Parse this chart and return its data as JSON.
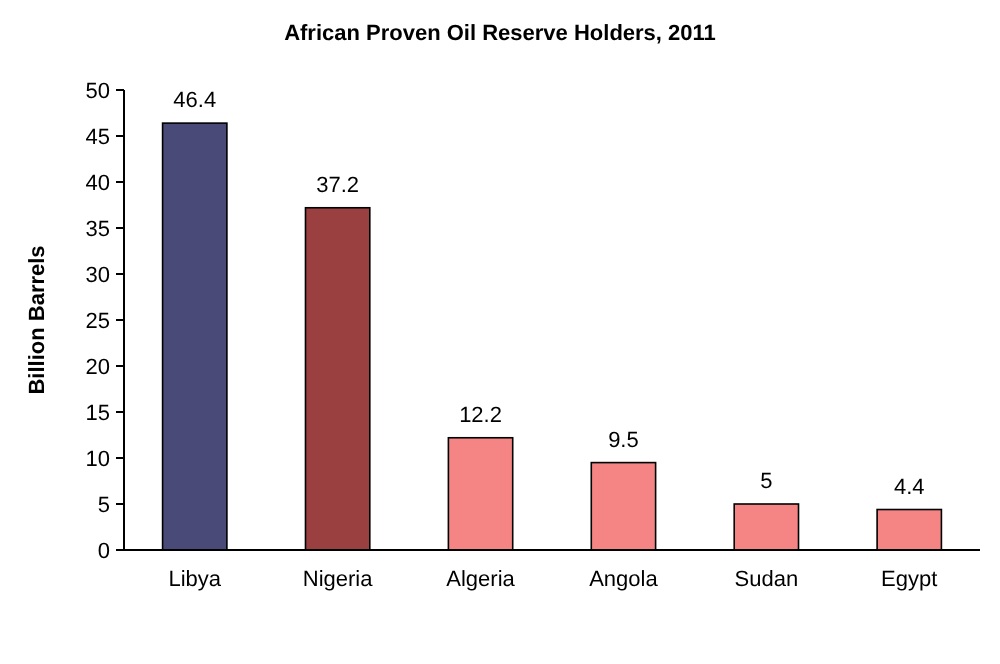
{
  "chart_data": {
    "type": "bar",
    "title": "African Proven Oil Reserve Holders, 2011",
    "ylabel": "Billion Barrels",
    "categories": [
      "Libya",
      "Nigeria",
      "Algeria",
      "Angola",
      "Sudan",
      "Egypt"
    ],
    "values": [
      46.4,
      37.2,
      12.2,
      9.5,
      5,
      4.4
    ],
    "colors": [
      "#4a4a78",
      "#9a4040",
      "#f58585",
      "#f58585",
      "#f58585",
      "#f58585"
    ],
    "ylim": [
      0,
      50
    ],
    "yticks": [
      0,
      5,
      10,
      15,
      20,
      25,
      30,
      35,
      40,
      45,
      50
    ],
    "grid": false,
    "data_labels": true
  }
}
